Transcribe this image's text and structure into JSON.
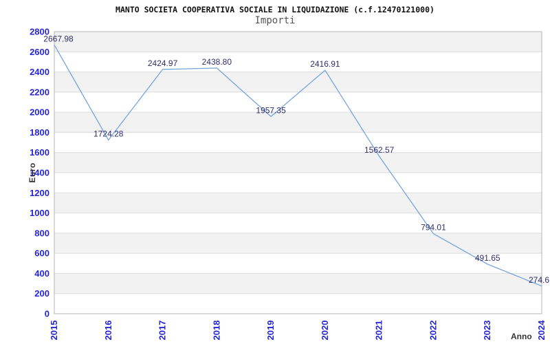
{
  "header": {
    "title": "MANTO SOCIETA COOPERATIVA SOCIALE IN LIQUIDAZIONE (c.f.12470121000)",
    "subtitle": "Importi"
  },
  "chart_data": {
    "type": "line",
    "title": "MANTO SOCIETA COOPERATIVA SOCIALE IN LIQUIDAZIONE (c.f.12470121000)",
    "subtitle": "Importi",
    "xlabel": "Anno",
    "ylabel": "Euro",
    "categories": [
      "2015",
      "2016",
      "2017",
      "2018",
      "2019",
      "2020",
      "2021",
      "2022",
      "2023",
      "2024"
    ],
    "series": [
      {
        "name": "Importi",
        "values": [
          2667.98,
          1724.28,
          2424.97,
          2438.8,
          1957.35,
          2416.91,
          1562.57,
          794.01,
          491.65,
          274.6
        ]
      }
    ],
    "point_labels": [
      "2667.98",
      "1724.28",
      "2424.97",
      "2438.80",
      "1957.35",
      "2416.91",
      "1562.57",
      "794.01",
      "491.65",
      "274.6"
    ],
    "ylim": [
      0,
      2800
    ],
    "ytick_step": 200,
    "ytick_labels": [
      "0",
      "200",
      "400",
      "600",
      "800",
      "1000",
      "1200",
      "1400",
      "1600",
      "1800",
      "2000",
      "2200",
      "2400",
      "2600",
      "2800"
    ],
    "grid": "horizontal-bands-alternating",
    "legend_position": "none",
    "colors": {
      "line": "#74a5dc",
      "tick_label": "#2525d6",
      "point_label": "#2e2e6e",
      "band_gray": "#f2f2f2",
      "band_white": "#ffffff",
      "grid_line": "#dcdcdc",
      "frame_border": "#b4b4b4",
      "title": "#111111",
      "subtitle": "#555555",
      "axis_title": "#333333"
    }
  }
}
